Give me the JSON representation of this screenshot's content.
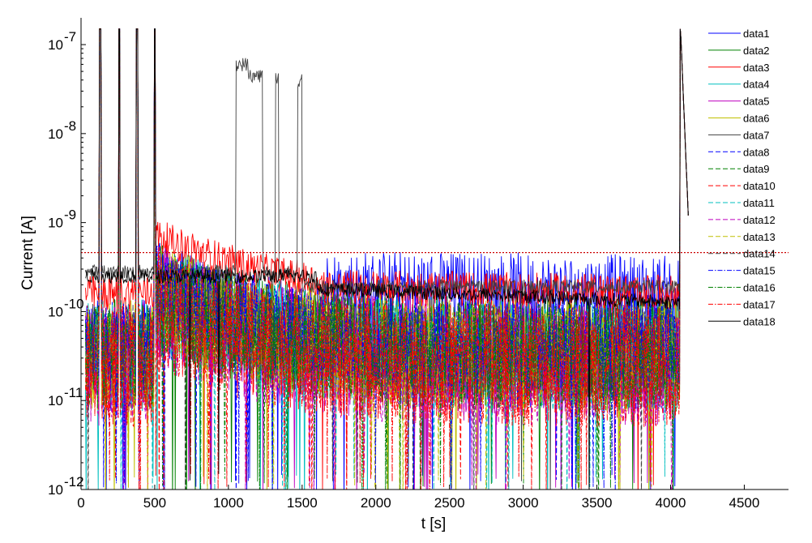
{
  "chart_data": {
    "type": "line",
    "title": "",
    "xlabel": "t [s]",
    "ylabel": "Current [A]",
    "xlim": [
      0,
      4800
    ],
    "ylim": [
      1e-12,
      2e-07
    ],
    "yscale": "log",
    "xticks": [
      0,
      500,
      1000,
      1500,
      2000,
      2500,
      3000,
      3500,
      4000,
      4500
    ],
    "xtick_labels": [
      "0",
      "500",
      "1000",
      "1500",
      "2000",
      "2500",
      "3000",
      "3500",
      "4000",
      "4500"
    ],
    "yticks": [
      1e-12,
      1e-11,
      1e-10,
      1e-09,
      1e-08,
      1e-07
    ],
    "ytick_base": [
      "10",
      "10",
      "10",
      "10",
      "10",
      "10"
    ],
    "ytick_exp": [
      "-12",
      "-11",
      "-10",
      "-9",
      "-8",
      "-7"
    ],
    "grid": false,
    "legend_position": "top-right",
    "threshold_line": {
      "y": 4.6e-10,
      "color": "#cc0000",
      "style": "dotted"
    },
    "series": [
      {
        "name": "data1",
        "color": "#0000ff",
        "dash": "solid",
        "level": 5e-11,
        "plateau": 1.8e-10,
        "noise": 0.45
      },
      {
        "name": "data2",
        "color": "#008000",
        "dash": "solid",
        "level": 4e-11,
        "noise": 0.55
      },
      {
        "name": "data3",
        "color": "#ff0000",
        "dash": "solid",
        "level": 1.6e-10,
        "plateau": 1.9e-10,
        "noise": 0.2
      },
      {
        "name": "data4",
        "color": "#00bfbf",
        "dash": "solid",
        "level": 3.5e-11,
        "noise": 0.6
      },
      {
        "name": "data5",
        "color": "#bf00bf",
        "dash": "solid",
        "level": 3e-11,
        "noise": 0.65
      },
      {
        "name": "data6",
        "color": "#bfbf00",
        "dash": "solid",
        "level": 3.5e-11,
        "noise": 0.6
      },
      {
        "name": "data7",
        "color": "#404040",
        "dash": "solid",
        "level": 2.8e-10,
        "noise": 0.08
      },
      {
        "name": "data8",
        "color": "#0000ff",
        "dash": "dashed",
        "level": 3e-11,
        "noise": 0.6
      },
      {
        "name": "data9",
        "color": "#008000",
        "dash": "dashed",
        "level": 3e-11,
        "noise": 0.6
      },
      {
        "name": "data10",
        "color": "#ff0000",
        "dash": "dashed",
        "level": 2.5e-11,
        "noise": 0.7
      },
      {
        "name": "data11",
        "color": "#00bfbf",
        "dash": "dashed",
        "level": 3e-11,
        "noise": 0.6
      },
      {
        "name": "data12",
        "color": "#bf00bf",
        "dash": "dashed",
        "level": 2.5e-11,
        "noise": 0.7
      },
      {
        "name": "data13",
        "color": "#bfbf00",
        "dash": "dashed",
        "level": 3e-11,
        "noise": 0.6
      },
      {
        "name": "data14",
        "color": "#404040",
        "dash": "dashed",
        "level": 3.5e-11,
        "noise": 0.55
      },
      {
        "name": "data15",
        "color": "#0000ff",
        "dash": "dashdot",
        "level": 4e-11,
        "noise": 0.5
      },
      {
        "name": "data16",
        "color": "#008000",
        "dash": "dashdot",
        "level": 3e-11,
        "noise": 0.6
      },
      {
        "name": "data17",
        "color": "#ff0000",
        "dash": "dashdot",
        "level": 2.5e-11,
        "noise": 0.7
      },
      {
        "name": "data18",
        "color": "#000000",
        "dash": "solid",
        "level": 1.8e-10,
        "noise": 0.08
      }
    ],
    "spike_times": [
      5,
      130,
      260,
      380,
      500,
      4070
    ]
  }
}
